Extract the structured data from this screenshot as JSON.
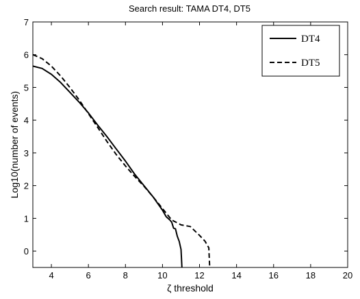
{
  "chart_data": {
    "type": "line",
    "title": "Search result: TAMA DT4, DT5",
    "xlabel": "ζ threshold",
    "ylabel": "Log10(number of events)",
    "xlim": [
      3,
      20
    ],
    "ylim": [
      -0.5,
      7
    ],
    "xticks": [
      4,
      6,
      8,
      10,
      12,
      14,
      16,
      18,
      20
    ],
    "yticks": [
      0,
      1,
      2,
      3,
      4,
      5,
      6,
      7
    ],
    "grid": false,
    "legend_position": "top-right",
    "series": [
      {
        "name": "DT4",
        "style": "solid",
        "color": "#000000",
        "x": [
          3.0,
          3.5,
          4.0,
          4.5,
          5.0,
          5.5,
          6.0,
          6.5,
          7.0,
          7.5,
          8.0,
          8.5,
          9.0,
          9.5,
          10.0,
          10.2,
          10.4,
          10.5,
          10.6,
          10.7,
          10.8,
          10.9,
          11.0,
          11.05
        ],
        "y": [
          5.65,
          5.58,
          5.4,
          5.15,
          4.85,
          4.55,
          4.22,
          3.85,
          3.5,
          3.12,
          2.75,
          2.35,
          2.0,
          1.65,
          1.25,
          1.05,
          0.95,
          0.88,
          0.7,
          0.68,
          0.45,
          0.3,
          0.05,
          -0.5
        ]
      },
      {
        "name": "DT5",
        "style": "dashed",
        "color": "#000000",
        "x": [
          3.0,
          3.5,
          4.0,
          4.5,
          5.0,
          5.5,
          6.0,
          6.5,
          7.0,
          7.5,
          8.0,
          8.5,
          9.0,
          9.5,
          10.0,
          10.5,
          11.0,
          11.5,
          12.0,
          12.3,
          12.5,
          12.55
        ],
        "y": [
          6.0,
          5.88,
          5.65,
          5.35,
          5.0,
          4.62,
          4.2,
          3.78,
          3.35,
          2.95,
          2.6,
          2.28,
          1.98,
          1.65,
          1.3,
          0.95,
          0.8,
          0.75,
          0.48,
          0.3,
          0.1,
          -0.5
        ]
      }
    ]
  }
}
